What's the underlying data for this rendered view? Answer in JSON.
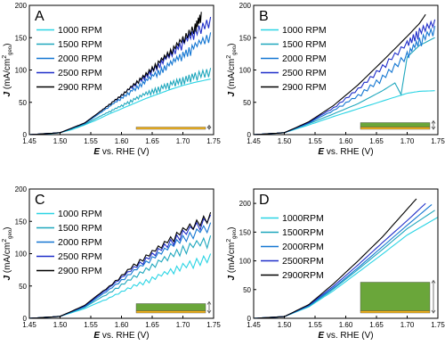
{
  "colors": {
    "1000": "#2ad4e4",
    "1500": "#1fa7bd",
    "2000": "#1577d2",
    "2500": "#1f2ec9",
    "2900": "#000000",
    "layer_gold": "#f2b21a",
    "layer_green": "#6aa63a",
    "arrow": "#555555"
  },
  "axes": {
    "xlabel_bold": "E",
    "xlabel_rest": " vs. RHE (V)",
    "ylabel_bold": "J",
    "ylabel_rest": " (mA/cm",
    "ylabel_sup": "2",
    "ylabel_sub": "geo",
    "ylabel_close": ")"
  },
  "chart_data": [
    {
      "panel": "A",
      "type": "line",
      "xlim": [
        1.45,
        1.75
      ],
      "ylim": [
        0,
        200
      ],
      "xticks": [
        "1.45",
        "1.50",
        "1.55",
        "1.60",
        "1.65",
        "1.70",
        "1.75"
      ],
      "yticks": [
        "0",
        "50",
        "100",
        "150",
        "200"
      ],
      "legend": [
        "1000 RPM",
        "1500 RPM",
        "2000 RPM",
        "2500 RPM",
        "2900 RPM"
      ],
      "series": [
        {
          "name": "1000 RPM",
          "color": "1000",
          "noisy": false,
          "x": [
            1.45,
            1.48,
            1.5,
            1.52,
            1.54,
            1.56,
            1.58,
            1.6,
            1.62,
            1.64,
            1.66,
            1.68,
            1.7,
            1.72,
            1.745
          ],
          "y": [
            0,
            1,
            3,
            8,
            15,
            23,
            32,
            40,
            48,
            56,
            63,
            70,
            76,
            81,
            86
          ]
        },
        {
          "name": "1500 RPM",
          "color": "1500",
          "noisy": true,
          "x": [
            1.45,
            1.5,
            1.54,
            1.56,
            1.58,
            1.6,
            1.62,
            1.64,
            1.66,
            1.68,
            1.7,
            1.72,
            1.745
          ],
          "y": [
            0,
            3,
            16,
            26,
            36,
            46,
            56,
            66,
            74,
            82,
            89,
            96,
            103
          ]
        },
        {
          "name": "2000 RPM",
          "color": "2000",
          "noisy": true,
          "x": [
            1.45,
            1.5,
            1.54,
            1.56,
            1.58,
            1.6,
            1.62,
            1.64,
            1.66,
            1.68,
            1.7,
            1.72,
            1.745
          ],
          "y": [
            0,
            3,
            17,
            30,
            44,
            58,
            72,
            86,
            100,
            114,
            128,
            142,
            158
          ]
        },
        {
          "name": "2500 RPM",
          "color": "2500",
          "noisy": true,
          "x": [
            1.45,
            1.5,
            1.54,
            1.56,
            1.58,
            1.6,
            1.62,
            1.64,
            1.66,
            1.68,
            1.7,
            1.72,
            1.745
          ],
          "y": [
            0,
            3,
            18,
            32,
            47,
            62,
            78,
            94,
            111,
            128,
            146,
            164,
            182
          ]
        },
        {
          "name": "2900 RPM",
          "color": "2900",
          "noisy": true,
          "x": [
            1.45,
            1.5,
            1.54,
            1.56,
            1.58,
            1.6,
            1.62,
            1.64,
            1.66,
            1.68,
            1.7,
            1.72,
            1.73
          ],
          "y": [
            0,
            3,
            18,
            32,
            47,
            62,
            79,
            96,
            114,
            132,
            152,
            172,
            190
          ]
        }
      ],
      "film": {
        "gold_h": 2.5,
        "green_h": 0
      }
    },
    {
      "panel": "B",
      "type": "line",
      "xlim": [
        1.45,
        1.75
      ],
      "ylim": [
        0,
        200
      ],
      "xticks": [
        "1.45",
        "1.50",
        "1.55",
        "1.60",
        "1.65",
        "1.70",
        "1.75"
      ],
      "yticks": [
        "0",
        "50",
        "100",
        "150",
        "200"
      ],
      "legend": [
        "1000 RPM",
        "1500 RPM",
        "2000 RPM",
        "2500 RPM",
        "2900 RPM"
      ],
      "series": [
        {
          "name": "1000 RPM",
          "color": "1000",
          "noisy": false,
          "x": [
            1.45,
            1.5,
            1.54,
            1.58,
            1.62,
            1.66,
            1.7,
            1.72,
            1.745
          ],
          "y": [
            0,
            3,
            15,
            28,
            40,
            52,
            64,
            67,
            68
          ]
        },
        {
          "name": "1500 RPM",
          "color": "1500",
          "noisy": false,
          "x": [
            1.45,
            1.5,
            1.54,
            1.58,
            1.62,
            1.66,
            1.68,
            1.69,
            1.7,
            1.72,
            1.745
          ],
          "y": [
            0,
            3,
            17,
            32,
            48,
            68,
            80,
            62,
            120,
            138,
            150
          ]
        },
        {
          "name": "2000 RPM",
          "color": "2000",
          "noisy": true,
          "x": [
            1.45,
            1.5,
            1.54,
            1.58,
            1.62,
            1.66,
            1.7,
            1.72,
            1.745
          ],
          "y": [
            0,
            3,
            18,
            38,
            62,
            92,
            128,
            150,
            168
          ]
        },
        {
          "name": "2500 RPM",
          "color": "2500",
          "noisy": true,
          "x": [
            1.45,
            1.5,
            1.54,
            1.58,
            1.62,
            1.66,
            1.7,
            1.72,
            1.745
          ],
          "y": [
            0,
            3,
            19,
            42,
            72,
            108,
            145,
            165,
            178
          ]
        },
        {
          "name": "2900 RPM",
          "color": "2900",
          "noisy": false,
          "x": [
            1.45,
            1.5,
            1.54,
            1.58,
            1.62,
            1.66,
            1.7,
            1.72,
            1.73
          ],
          "y": [
            0,
            3,
            20,
            45,
            77,
            114,
            152,
            172,
            186
          ]
        }
      ],
      "film": {
        "gold_h": 2.5,
        "green_h": 5
      }
    },
    {
      "panel": "C",
      "type": "line",
      "xlim": [
        1.45,
        1.75
      ],
      "ylim": [
        0,
        200
      ],
      "xticks": [
        "1.45",
        "1.50",
        "1.55",
        "1.60",
        "1.65",
        "1.70",
        "1.75"
      ],
      "yticks": [
        "0",
        "50",
        "100",
        "150",
        "200"
      ],
      "legend": [
        "1000 RPM",
        "1500 RPM",
        "2000 RPM",
        "2500 RPM",
        "2900 RPM"
      ],
      "series": [
        {
          "name": "1000 RPM",
          "color": "1000",
          "noisy": true,
          "x": [
            1.45,
            1.5,
            1.54,
            1.58,
            1.62,
            1.66,
            1.7,
            1.745
          ],
          "y": [
            0,
            3,
            15,
            32,
            52,
            68,
            85,
            100
          ]
        },
        {
          "name": "1500 RPM",
          "color": "1500",
          "noisy": true,
          "x": [
            1.45,
            1.5,
            1.54,
            1.58,
            1.62,
            1.66,
            1.7,
            1.745
          ],
          "y": [
            0,
            3,
            17,
            40,
            66,
            90,
            112,
            128
          ]
        },
        {
          "name": "2000 RPM",
          "color": "2000",
          "noisy": true,
          "x": [
            1.45,
            1.5,
            1.54,
            1.58,
            1.62,
            1.66,
            1.7,
            1.745
          ],
          "y": [
            0,
            3,
            18,
            45,
            75,
            102,
            128,
            148
          ]
        },
        {
          "name": "2500 RPM",
          "color": "2500",
          "noisy": true,
          "x": [
            1.45,
            1.5,
            1.54,
            1.58,
            1.62,
            1.66,
            1.7,
            1.745
          ],
          "y": [
            0,
            3,
            19,
            48,
            80,
            108,
            136,
            160
          ]
        },
        {
          "name": "2900 RPM",
          "color": "2900",
          "noisy": true,
          "x": [
            1.45,
            1.5,
            1.54,
            1.58,
            1.62,
            1.66,
            1.7,
            1.745
          ],
          "y": [
            0,
            3,
            20,
            50,
            84,
            112,
            140,
            164
          ]
        }
      ],
      "film": {
        "gold_h": 2.5,
        "green_h": 8
      }
    },
    {
      "panel": "D",
      "type": "line",
      "xlim": [
        1.45,
        1.75
      ],
      "ylim": [
        0,
        225
      ],
      "xticks": [
        "1.45",
        "1.50",
        "1.55",
        "1.60",
        "1.65",
        "1.70",
        "1.75"
      ],
      "yticks": [
        "0",
        "50",
        "100",
        "150",
        "200"
      ],
      "legend": [
        "1000RPM",
        "1500RPM",
        "2000RPM",
        "2500RPM",
        "2900RPM"
      ],
      "series": [
        {
          "name": "1000RPM",
          "color": "1000",
          "noisy": false,
          "x": [
            1.45,
            1.5,
            1.54,
            1.58,
            1.62,
            1.66,
            1.7,
            1.75
          ],
          "y": [
            0,
            3,
            20,
            48,
            80,
            112,
            145,
            176
          ]
        },
        {
          "name": "1500RPM",
          "color": "1500",
          "noisy": false,
          "x": [
            1.45,
            1.5,
            1.54,
            1.58,
            1.62,
            1.66,
            1.7,
            1.745
          ],
          "y": [
            0,
            3,
            21,
            51,
            85,
            120,
            156,
            188
          ]
        },
        {
          "name": "2000RPM",
          "color": "2000",
          "noisy": false,
          "x": [
            1.45,
            1.5,
            1.54,
            1.58,
            1.62,
            1.66,
            1.7,
            1.74
          ],
          "y": [
            0,
            3,
            22,
            53,
            88,
            125,
            162,
            198
          ]
        },
        {
          "name": "2500RPM",
          "color": "2500",
          "noisy": false,
          "x": [
            1.45,
            1.5,
            1.54,
            1.58,
            1.62,
            1.66,
            1.7,
            1.73
          ],
          "y": [
            0,
            3,
            23,
            56,
            93,
            132,
            170,
            200
          ]
        },
        {
          "name": "2900RPM",
          "color": "2900",
          "noisy": false,
          "x": [
            1.45,
            1.5,
            1.54,
            1.58,
            1.62,
            1.66,
            1.69,
            1.715
          ],
          "y": [
            0,
            3,
            24,
            60,
            100,
            142,
            178,
            208
          ]
        }
      ],
      "film": {
        "gold_h": 2.5,
        "green_h": 32
      }
    }
  ]
}
